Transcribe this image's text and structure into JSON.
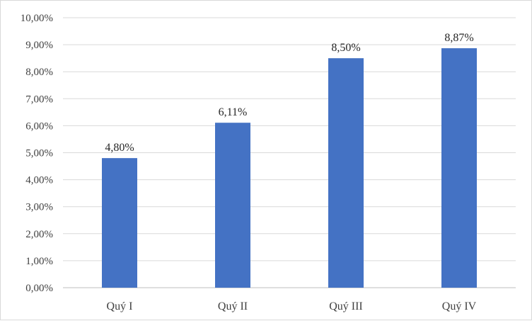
{
  "chart_data": {
    "type": "bar",
    "title": "",
    "xlabel": "",
    "ylabel": "",
    "categories": [
      "Quý I",
      "Quý II",
      "Quý III",
      "Quý IV"
    ],
    "values": [
      4.8,
      6.11,
      8.5,
      8.87
    ],
    "data_labels": [
      "4,80%",
      "6,11%",
      "8,50%",
      "8,87%"
    ],
    "ylim": [
      0,
      10
    ],
    "y_ticks": [
      0,
      1,
      2,
      3,
      4,
      5,
      6,
      7,
      8,
      9,
      10
    ],
    "y_tick_labels": [
      "0,00%",
      "1,00%",
      "2,00%",
      "3,00%",
      "4,00%",
      "5,00%",
      "6,00%",
      "7,00%",
      "8,00%",
      "9,00%",
      "10,00%"
    ],
    "grid": true,
    "legend": "none",
    "colors": {
      "bar": "#4472c4",
      "grid": "#d9d9d9",
      "axis": "#bfbfbf"
    }
  }
}
